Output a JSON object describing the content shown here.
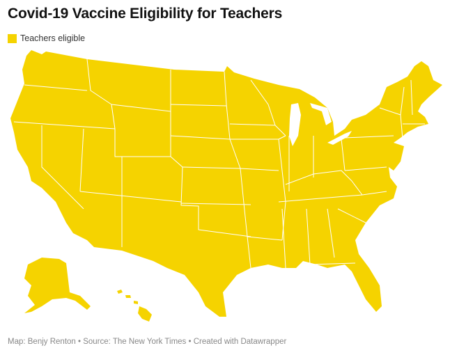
{
  "header": {
    "title": "Covid-19 Vaccine Eligibility for Teachers"
  },
  "legend": {
    "label": "Teachers eligible",
    "color": "#f5d300"
  },
  "footer": {
    "credit": "Map: Benjy Renton • Source: The New York Times • Created with Datawrapper"
  }
}
